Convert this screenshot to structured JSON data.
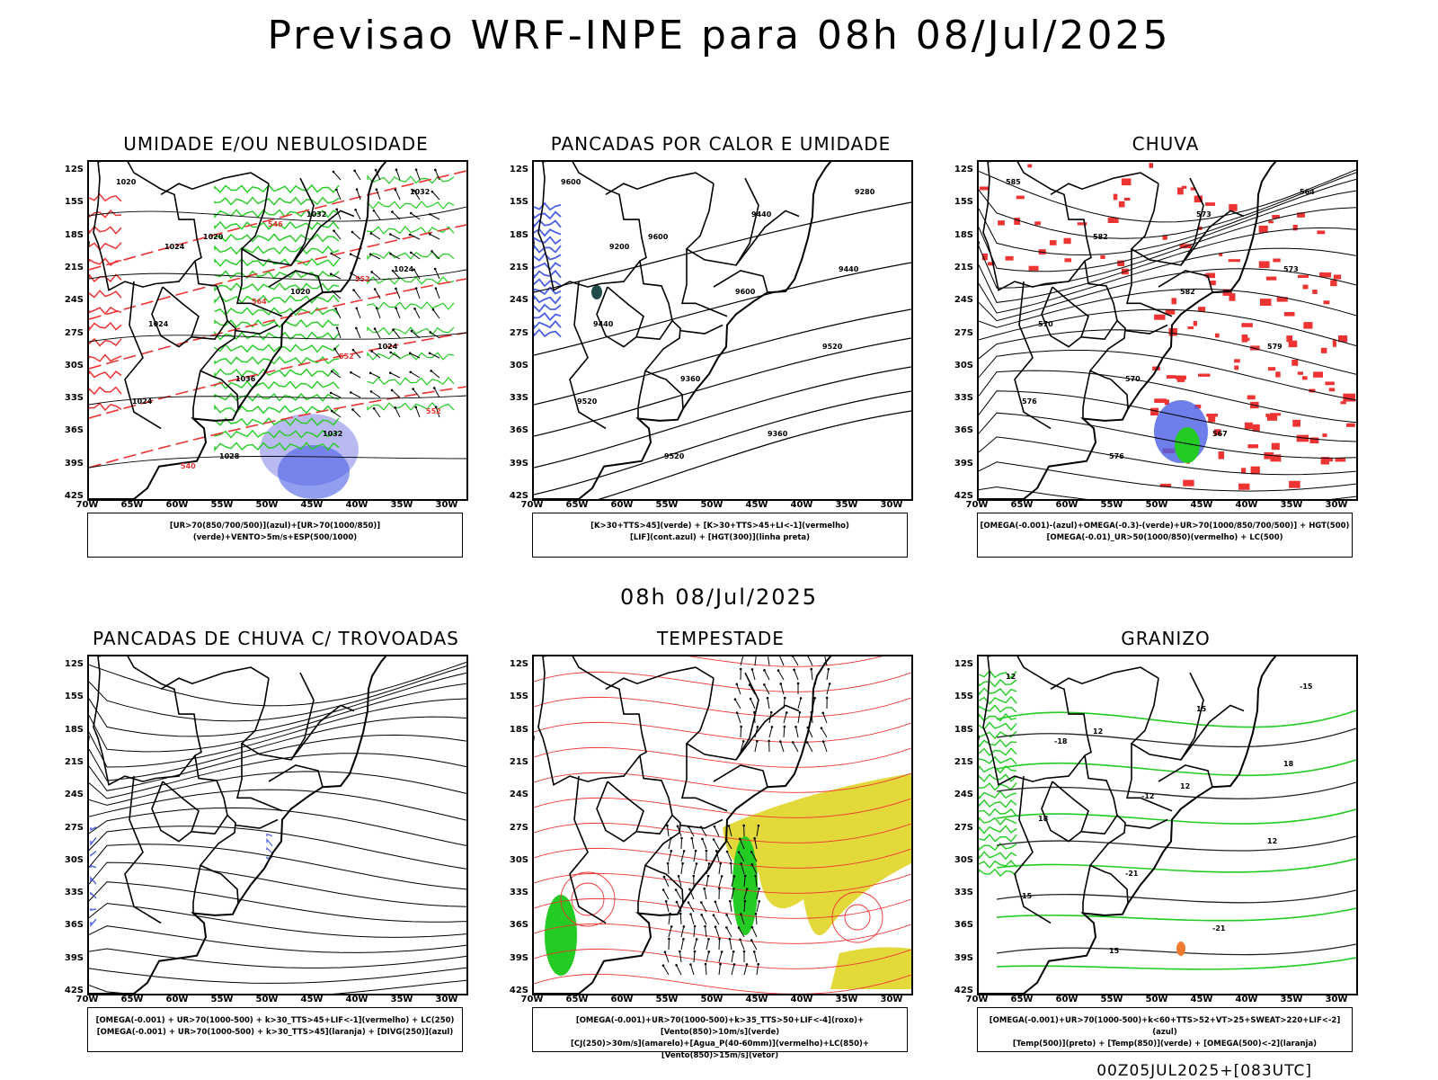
{
  "page": {
    "title": "Previsao WRF-INPE  para 08h 08/Jul/2025",
    "subtitle": "08h 08/Jul/2025",
    "footer": "00Z05JUL2025+[083UTC]"
  },
  "axes": {
    "lat_labels": [
      "12S",
      "15S",
      "18S",
      "21S",
      "24S",
      "27S",
      "30S",
      "33S",
      "36S",
      "39S",
      "42S"
    ],
    "lon_labels": [
      "70W",
      "65W",
      "60W",
      "55W",
      "50W",
      "45W",
      "40W",
      "35W",
      "30W"
    ]
  },
  "colors": {
    "blue": "#4a5fe6",
    "light_blue": "#a7a9ee",
    "green": "#22cc22",
    "red": "#ee3333",
    "yellow": "#e3d93a",
    "orange": "#f07a30",
    "dark_teal": "#1f4b4b",
    "black": "#000000"
  },
  "panels": [
    {
      "id": "umidade",
      "title": "UMIDADE E/OU NEBULOSIDADE",
      "legend": [
        "[UR>70(850/700/500)](azul)+[UR>70(1000/850)](verde)+VENTO>5m/s+ESP(500/1000)"
      ],
      "contour_labels": [
        "1020",
        "1020",
        "1020",
        "1024",
        "1024",
        "1028",
        "1032",
        "1024",
        "1024",
        "1036",
        "1032",
        "1032",
        "1024",
        "564",
        "552",
        "552",
        "540",
        "546",
        "552"
      ]
    },
    {
      "id": "pancadas_calor",
      "title": "PANCADAS POR CALOR E UMIDADE",
      "legend": [
        "[K>30+TTS>45](verde) + [K>30+TTS>45+LI<-1](vermelho)",
        "[LIF](cont.azul) + [HGT(300)](linha preta)"
      ],
      "contour_labels": [
        "9600",
        "9600",
        "9600",
        "9520",
        "9520",
        "9520",
        "9440",
        "9440",
        "9440",
        "9360",
        "9360",
        "9280",
        "9200"
      ]
    },
    {
      "id": "chuva",
      "title": "CHUVA",
      "legend": [
        "[OMEGA(-0.001)-(azul)+OMEGA(-0.3)-(verde)+UR>70(1000/850/700/500)] + HGT(500)",
        "[OMEGA(-0.01)_UR>50(1000/850)(vermelho) + LC(500)"
      ],
      "contour_labels": [
        "585",
        "582",
        "582",
        "579",
        "576",
        "576",
        "573",
        "573",
        "570",
        "570",
        "567",
        "564"
      ]
    },
    {
      "id": "trovoadas",
      "title": "PANCADAS DE CHUVA C/ TROVOADAS",
      "legend": [
        "[OMEGA(-0.001) + UR>70(1000-500) + k>30_TTS>45+LIF<-1](vermelho) + LC(250)",
        "[OMEGA(-0.001) + UR>70(1000-500) + k>30_TTS>45](laranja) + [DIVG(250)](azul)"
      ],
      "contour_labels": []
    },
    {
      "id": "tempestade",
      "title": "TEMPESTADE",
      "legend": [
        "[OMEGA(-0.001)+UR>70(1000-500)+k>35_TTS>50+LIF<-4](roxo)+[Vento(850)>10m/s](verde)",
        "[CJ(250)>30m/s](amarelo)+[Agua_P(40-60mm)](vermelho)+LC(850)+[Vento(850)>15m/s](vetor)"
      ],
      "contour_labels": []
    },
    {
      "id": "granizo",
      "title": "GRANIZO",
      "legend": [
        "[OMEGA(-0.001)+UR>70(1000-500)+k<60+TTS>52+VT>25+SWEAT>220+LIF<-2](azul)",
        "[Temp(500)](preto) + [Temp(850)](verde) + [OMEGA(500)<-2](laranja)"
      ],
      "contour_labels": [
        "12",
        "12",
        "12",
        "12",
        "15",
        "15",
        "15",
        "18",
        "18",
        "-21",
        "-21",
        "-15",
        "-18",
        "-12"
      ]
    }
  ]
}
